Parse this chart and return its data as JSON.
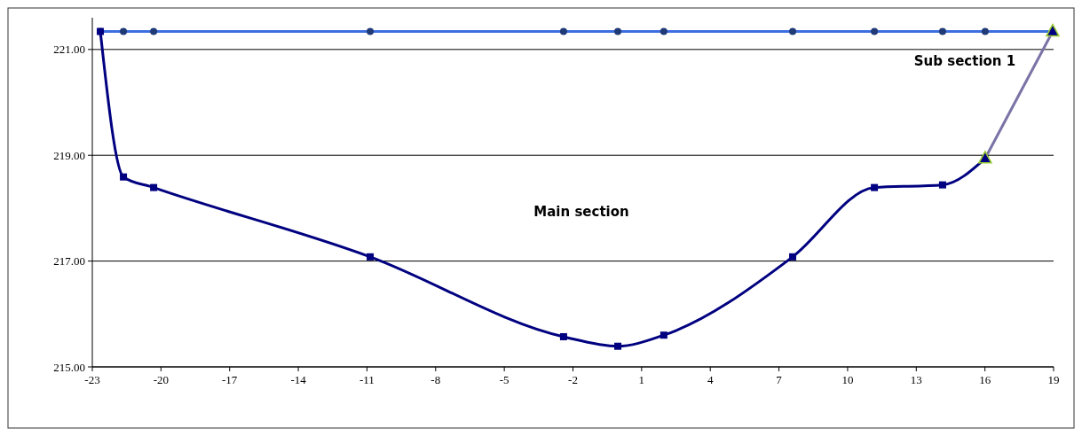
{
  "chart_data": {
    "type": "line",
    "xlim": [
      -23,
      19
    ],
    "ylim": [
      215,
      221.6
    ],
    "xticks": [
      -23,
      -20,
      -17,
      -14,
      -11,
      -8,
      -5,
      -2,
      1,
      4,
      7,
      10,
      13,
      16,
      19
    ],
    "yticks": [
      {
        "value": 215,
        "label": "215.00"
      },
      {
        "value": 217,
        "label": "217.00"
      },
      {
        "value": 219,
        "label": "219.00"
      },
      {
        "value": 221,
        "label": "221.00"
      }
    ],
    "grid": "y",
    "series": [
      {
        "color": "#3c6ee0",
        "marker": "circle",
        "x": [
          -22.65,
          -21.64,
          -20.32,
          -10.86,
          -2.41,
          -0.04,
          1.97,
          7.6,
          11.17,
          14.15,
          16.01,
          18.96
        ],
        "values": [
          221.34,
          221.34,
          221.34,
          221.34,
          221.34,
          221.34,
          221.34,
          221.34,
          221.34,
          221.34,
          221.34,
          221.34
        ]
      },
      {
        "color": "#000080",
        "marker": "square",
        "x": [
          -22.65,
          -21.64,
          -20.32,
          -10.86,
          -2.41,
          -0.04,
          1.97,
          7.6,
          11.17,
          14.15,
          16.01
        ],
        "values": [
          221.34,
          218.59,
          218.39,
          217.08,
          215.57,
          215.39,
          215.6,
          217.08,
          218.39,
          218.44,
          218.94
        ]
      },
      {
        "color": "#7a73a6",
        "marker": "triangle",
        "x": [
          16.01,
          18.96
        ],
        "values": [
          218.94,
          221.34
        ]
      }
    ],
    "annotations": [
      "Main section",
      "Sub section 1"
    ]
  }
}
